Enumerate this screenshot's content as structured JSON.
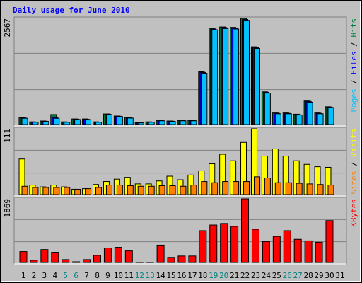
{
  "chart_data": [
    {
      "type": "bar",
      "title": "Daily usage for June 2010",
      "title_color": "#0000ff",
      "legend_separator": "/",
      "ylim": [
        0,
        2567
      ],
      "yticks": [
        2567
      ],
      "series": [
        {
          "name": "Pages",
          "color": "#00c0ff",
          "values": [
            150,
            55,
            75,
            150,
            55,
            120,
            115,
            55,
            240,
            190,
            155,
            40,
            55,
            90,
            75,
            90,
            90,
            1240,
            2290,
            2320,
            2310,
            2520,
            1840,
            760,
            260,
            260,
            230,
            540,
            260,
            410,
            0
          ]
        },
        {
          "name": "Files",
          "color": "#0000ff",
          "values": [
            160,
            60,
            80,
            170,
            60,
            130,
            125,
            60,
            250,
            200,
            165,
            45,
            60,
            95,
            80,
            95,
            95,
            1260,
            2310,
            2345,
            2330,
            2540,
            1860,
            780,
            270,
            270,
            240,
            560,
            270,
            420,
            0
          ]
        },
        {
          "name": "Hits",
          "color": "#008040",
          "values": [
            170,
            65,
            85,
            240,
            65,
            135,
            135,
            65,
            255,
            205,
            170,
            50,
            65,
            100,
            85,
            100,
            100,
            1275,
            2330,
            2360,
            2350,
            2567,
            1880,
            790,
            280,
            280,
            250,
            570,
            280,
            430,
            0
          ]
        }
      ]
    },
    {
      "type": "bar",
      "ylim": [
        0,
        111
      ],
      "yticks": [
        111
      ],
      "series": [
        {
          "name": "Sites",
          "color": "#ff8000",
          "values": [
            14,
            12,
            12,
            12,
            12,
            9,
            10,
            12,
            16,
            16,
            15,
            14,
            14,
            15,
            15,
            14,
            16,
            22,
            20,
            22,
            22,
            22,
            30,
            28,
            20,
            20,
            19,
            18,
            17,
            16,
            0
          ]
        },
        {
          "name": "Visits",
          "color": "#ffff00",
          "values": [
            60,
            16,
            13,
            16,
            13,
            9,
            10,
            17,
            22,
            26,
            29,
            18,
            18,
            23,
            31,
            25,
            33,
            40,
            52,
            68,
            57,
            88,
            111,
            65,
            77,
            65,
            57,
            51,
            47,
            46,
            0
          ]
        }
      ]
    },
    {
      "type": "bar",
      "ylim": [
        0,
        1869
      ],
      "yticks": [
        1869
      ],
      "categories": [
        "1",
        "2",
        "3",
        "4",
        "5",
        "6",
        "7",
        "8",
        "9",
        "10",
        "11",
        "12",
        "13",
        "14",
        "15",
        "16",
        "17",
        "18",
        "19",
        "20",
        "21",
        "22",
        "23",
        "24",
        "25",
        "26",
        "27",
        "28",
        "29",
        "30",
        "31"
      ],
      "category_colors": [
        "#000000",
        "#000000",
        "#000000",
        "#000000",
        "#008080",
        "#008080",
        "#000000",
        "#000000",
        "#000000",
        "#000000",
        "#000000",
        "#008080",
        "#008080",
        "#000000",
        "#000000",
        "#000000",
        "#000000",
        "#000000",
        "#008080",
        "#008080",
        "#000000",
        "#000000",
        "#000000",
        "#000000",
        "#000000",
        "#008080",
        "#008080",
        "#000000",
        "#000000",
        "#000000",
        "#000000"
      ],
      "series": [
        {
          "name": "KBytes",
          "color": "#ff0000",
          "values": [
            320,
            64,
            380,
            300,
            85,
            20,
            85,
            210,
            425,
            445,
            340,
            10,
            10,
            510,
            150,
            190,
            190,
            935,
            1100,
            1145,
            1060,
            1869,
            975,
            615,
            765,
            935,
            680,
            635,
            595,
            1230,
            0
          ]
        }
      ]
    }
  ]
}
